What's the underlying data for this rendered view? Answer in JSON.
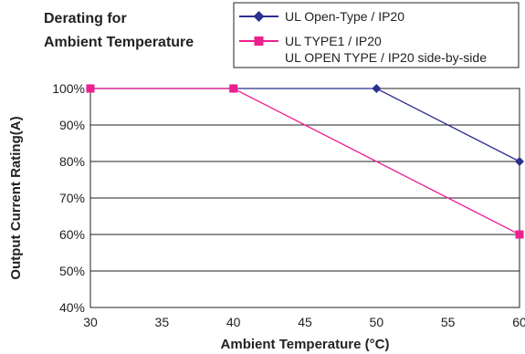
{
  "chart_data": {
    "type": "line",
    "title_lines": [
      "Derating for",
      "Ambient Temperature"
    ],
    "xlabel": "Ambient Temperature (°C)",
    "ylabel": "Output Current Rating(A)",
    "x_ticks": [
      "30",
      "35",
      "40",
      "45",
      "50",
      "55",
      "60"
    ],
    "y_ticks": [
      "40%",
      "50%",
      "60%",
      "70%",
      "80%",
      "90%",
      "100%"
    ],
    "xlim": [
      30,
      60
    ],
    "ylim": [
      40,
      100
    ],
    "grid": "horizontal",
    "legend_position": "top-right",
    "series": [
      {
        "name": "UL Open-Type / IP20",
        "name_line2": "",
        "color": "#2b2f8f",
        "marker": "diamond",
        "x": [
          30,
          40,
          50,
          60
        ],
        "y": [
          100,
          100,
          100,
          80
        ]
      },
      {
        "name": "UL TYPE1 / IP20",
        "name_line2": "UL OPEN TYPE / IP20 side-by-side",
        "color": "#ee1f8f",
        "marker": "square",
        "x": [
          30,
          40,
          60
        ],
        "y": [
          100,
          100,
          60
        ]
      }
    ]
  }
}
